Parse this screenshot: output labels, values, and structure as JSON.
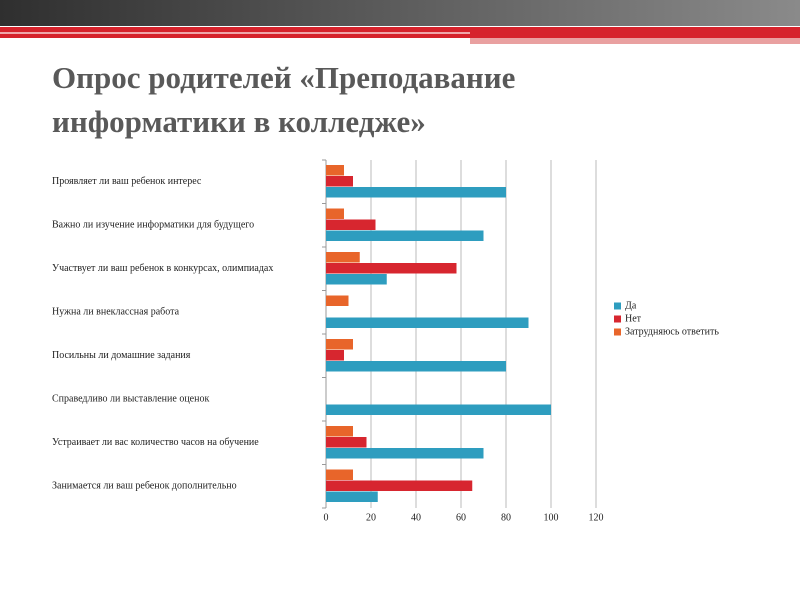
{
  "chart_data": {
    "type": "bar",
    "orientation": "horizontal",
    "title": "Опрос родителей «Преподавание информатики в колледже»",
    "categories": [
      "Проявляет ли ваш ребенок интерес",
      "Важно ли изучение информатики для будущего",
      "Участвует ли ваш ребенок в конкурсах, олимпиадах",
      "Нужна ли внеклассная работа",
      "Посильны ли домашние задания",
      "Справедливо ли выставление оценок",
      "Устраивает ли вас количество часов на обучение",
      "Занимается ли ваш ребенок дополнительно"
    ],
    "series": [
      {
        "name": "Да",
        "color": "#2e9dbf",
        "values": [
          80,
          70,
          27,
          90,
          80,
          100,
          70,
          23
        ]
      },
      {
        "name": "Нет",
        "color": "#d7262f",
        "values": [
          12,
          22,
          58,
          0,
          8,
          0,
          18,
          65
        ]
      },
      {
        "name": "Затрудняюсь ответить",
        "color": "#e8652a",
        "values": [
          8,
          8,
          15,
          10,
          12,
          0,
          12,
          12
        ]
      }
    ],
    "xlim": [
      0,
      120
    ],
    "xticks": [
      0,
      20,
      40,
      60,
      80,
      100,
      120
    ],
    "grid": true,
    "legend": "right"
  }
}
